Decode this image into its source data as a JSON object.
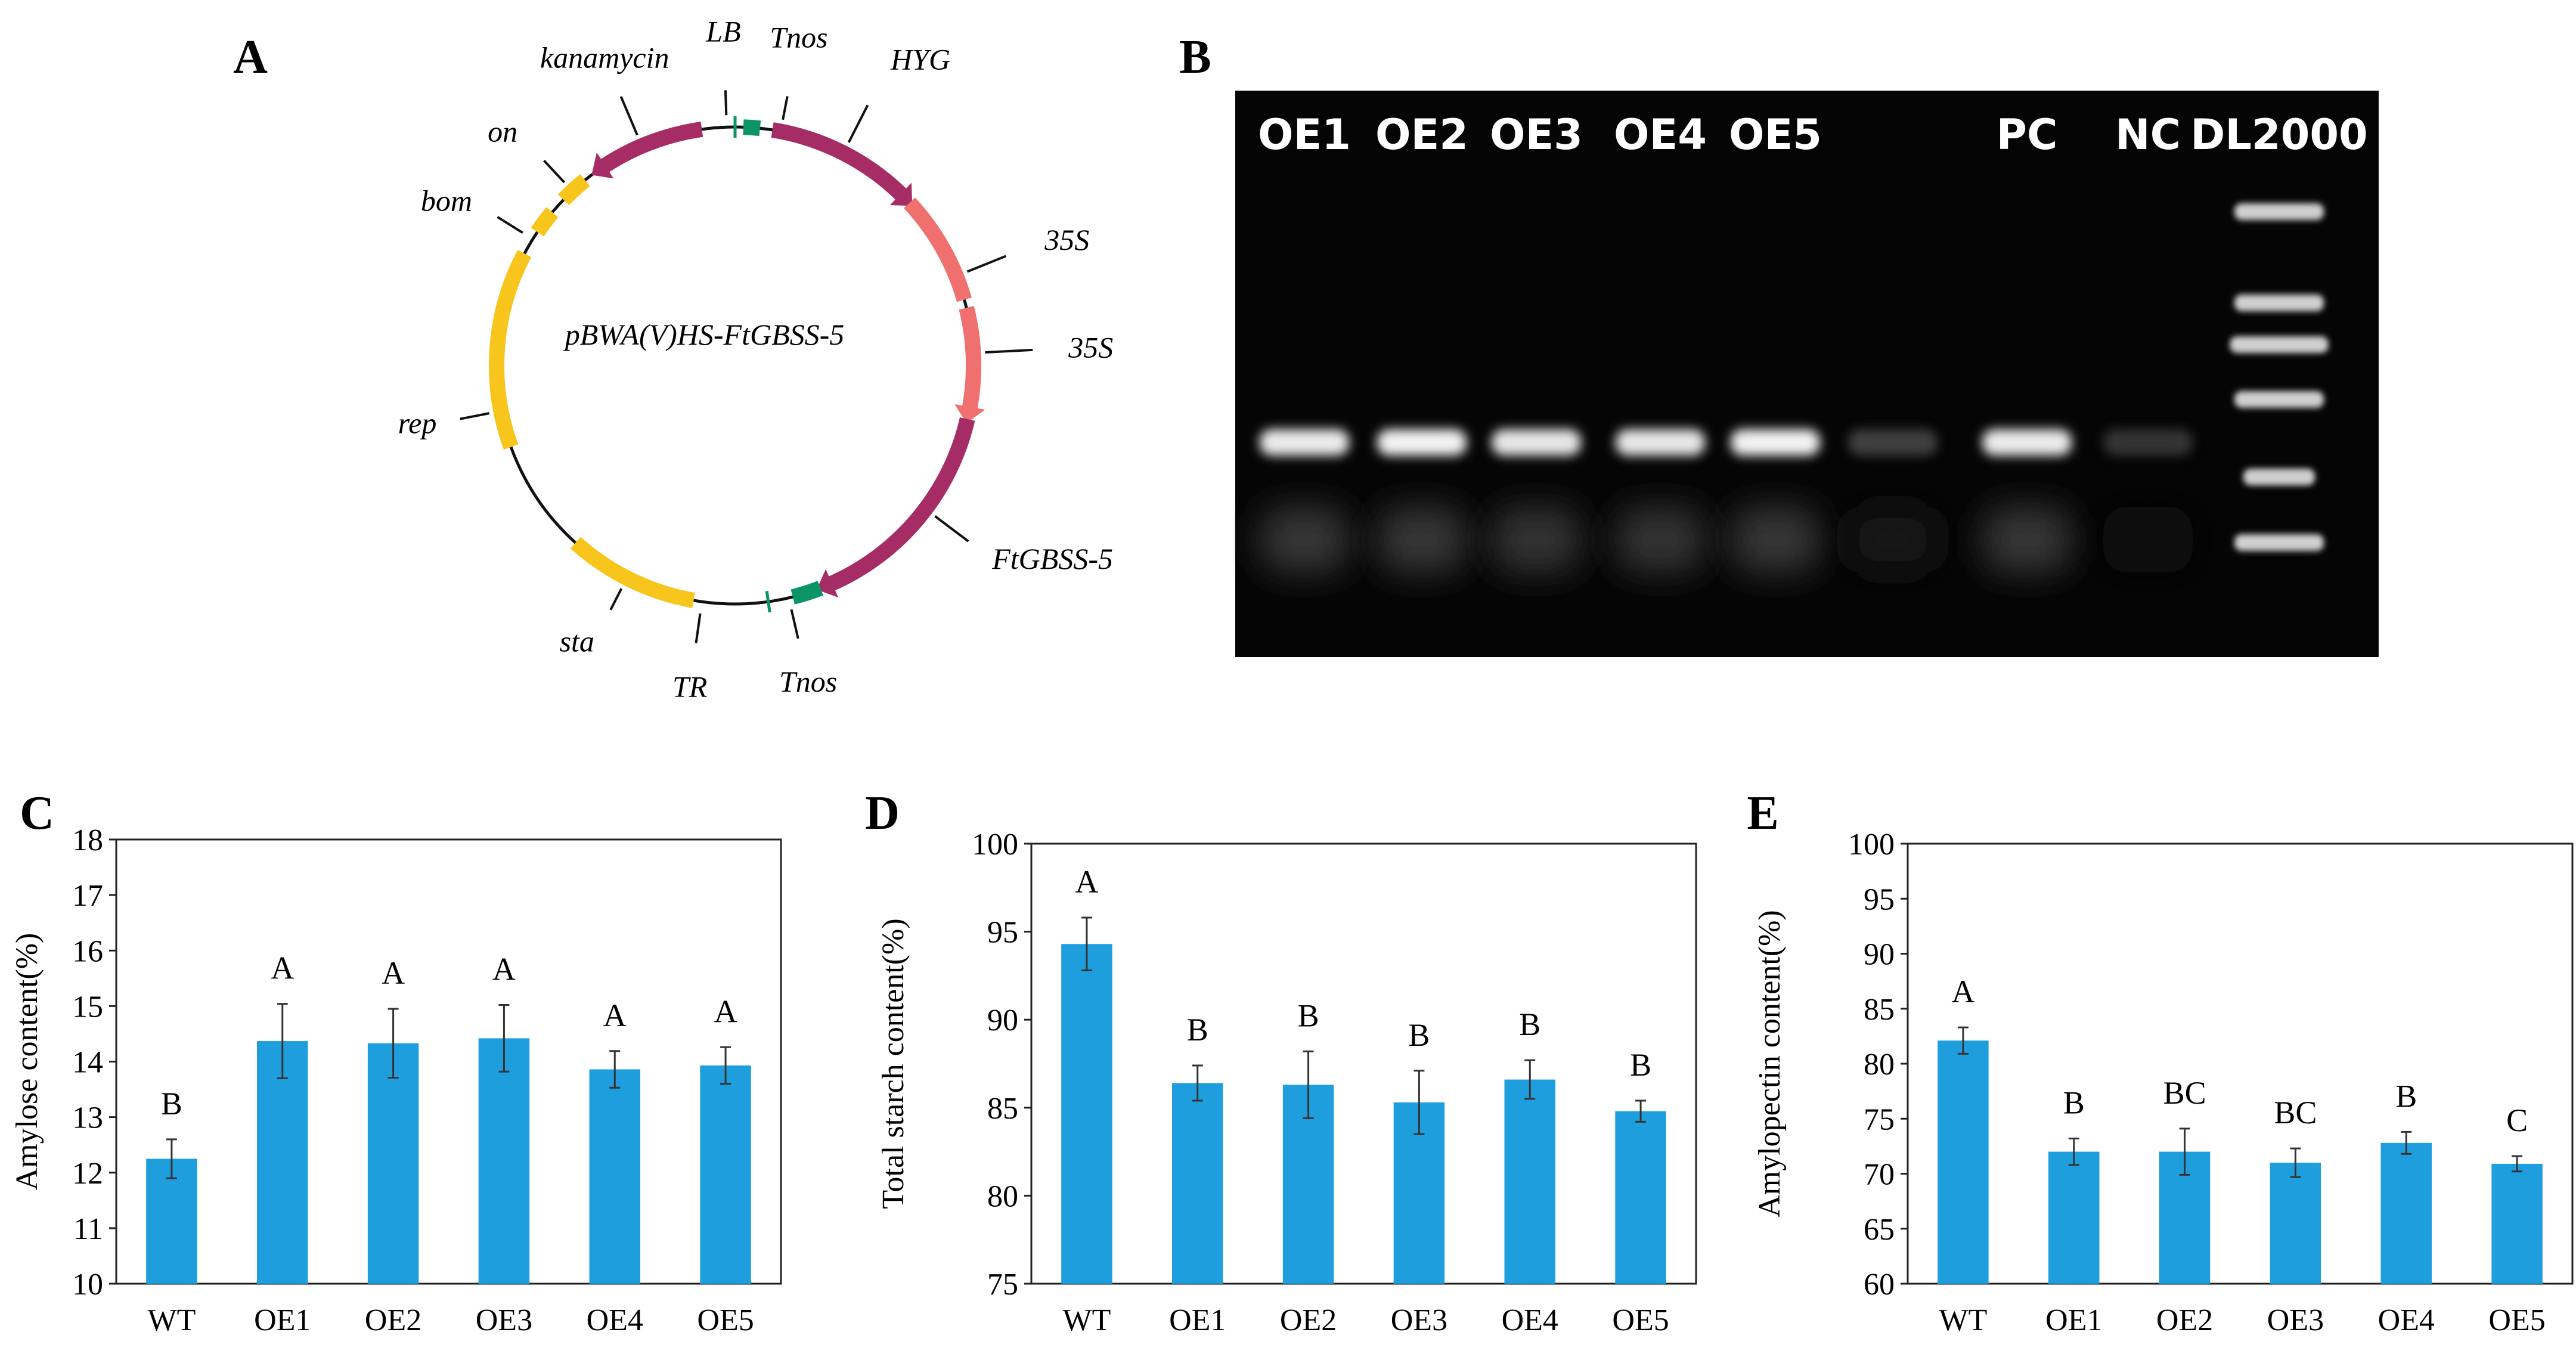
{
  "panels": {
    "A": {
      "letter": "A",
      "plasmid_name": "pBWA(V)HS-FtGBSS-5",
      "features": [
        {
          "label": "LB",
          "color": "#0a9468",
          "kind": "tick"
        },
        {
          "label": "Tnos",
          "color": "#0a9468",
          "kind": "block"
        },
        {
          "label": "HYG",
          "color": "#a62c66",
          "kind": "arrow"
        },
        {
          "label": "35S",
          "color": "#f07070",
          "kind": "block"
        },
        {
          "label": "35S",
          "color": "#f07070",
          "kind": "arrow"
        },
        {
          "label": "FtGBSS-5",
          "color": "#a62c66",
          "kind": "arrow"
        },
        {
          "label": "Tnos",
          "color": "#0a9468",
          "kind": "block"
        },
        {
          "label": "TR",
          "color": "#0a9468",
          "kind": "tick"
        },
        {
          "label": "sta",
          "color": "#f8c51c",
          "kind": "block"
        },
        {
          "label": "rep",
          "color": "#f8c51c",
          "kind": "block"
        },
        {
          "label": "bom",
          "color": "#f8c51c",
          "kind": "block"
        },
        {
          "label": "on",
          "color": "#f8c51c",
          "kind": "block"
        },
        {
          "label": "kanamycin",
          "color": "#a62c66",
          "kind": "arrow"
        }
      ]
    },
    "B": {
      "letter": "B",
      "lanes": [
        {
          "label": "OE1",
          "band": 0.92
        },
        {
          "label": "OE2",
          "band": 0.95
        },
        {
          "label": "OE3",
          "band": 0.9
        },
        {
          "label": "OE4",
          "band": 0.9
        },
        {
          "label": "OE5",
          "band": 0.95
        },
        {
          "label": "",
          "band": 0.35
        },
        {
          "label": "PC",
          "band": 0.92
        },
        {
          "label": "NC",
          "band": 0.3
        },
        {
          "label": "DL2000",
          "band": 0
        }
      ]
    },
    "C": {
      "letter": "C"
    },
    "D": {
      "letter": "D"
    },
    "E": {
      "letter": "E"
    }
  },
  "chart_data": [
    {
      "type": "bar",
      "panel": "C",
      "categories": [
        "WT",
        "OE1",
        "OE2",
        "OE3",
        "OE4",
        "OE5"
      ],
      "values": [
        12.25,
        14.37,
        14.33,
        14.42,
        13.86,
        13.93
      ],
      "errors": [
        0.35,
        0.67,
        0.62,
        0.6,
        0.33,
        0.33
      ],
      "letters": [
        "B",
        "A",
        "A",
        "A",
        "A",
        "A"
      ],
      "ylabel": "Amylose content(%)",
      "ylim": [
        10,
        18
      ],
      "ytick_labels": [
        "10",
        "11",
        "12",
        "13",
        "14",
        "15",
        "16",
        "17",
        "18"
      ],
      "color": "#1f9ede",
      "grid": false
    },
    {
      "type": "bar",
      "panel": "D",
      "categories": [
        "WT",
        "OE1",
        "OE2",
        "OE3",
        "OE4",
        "OE5"
      ],
      "values": [
        94.3,
        86.4,
        86.3,
        85.3,
        86.6,
        84.8
      ],
      "errors": [
        1.5,
        1.0,
        1.9,
        1.8,
        1.1,
        0.6
      ],
      "letters": [
        "A",
        "B",
        "B",
        "B",
        "B",
        "B"
      ],
      "ylabel": "Total starch content(%)",
      "ylim": [
        75,
        100
      ],
      "ytick_labels": [
        "75",
        "80",
        "85",
        "90",
        "95",
        "100"
      ],
      "color": "#1f9ede",
      "grid": false
    },
    {
      "type": "bar",
      "panel": "E",
      "categories": [
        "WT",
        "OE1",
        "OE2",
        "OE3",
        "OE4",
        "OE5"
      ],
      "values": [
        82.1,
        72.0,
        72.0,
        71.0,
        72.8,
        70.9
      ],
      "errors": [
        1.2,
        1.2,
        2.1,
        1.3,
        1.0,
        0.7
      ],
      "letters": [
        "A",
        "B",
        "BC",
        "BC",
        "B",
        "C"
      ],
      "ylabel": "Amylopectin content(%)",
      "ylim": [
        60,
        100
      ],
      "ytick_labels": [
        "60",
        "65",
        "70",
        "75",
        "80",
        "85",
        "90",
        "95",
        "100"
      ],
      "color": "#1f9ede",
      "grid": false
    }
  ]
}
